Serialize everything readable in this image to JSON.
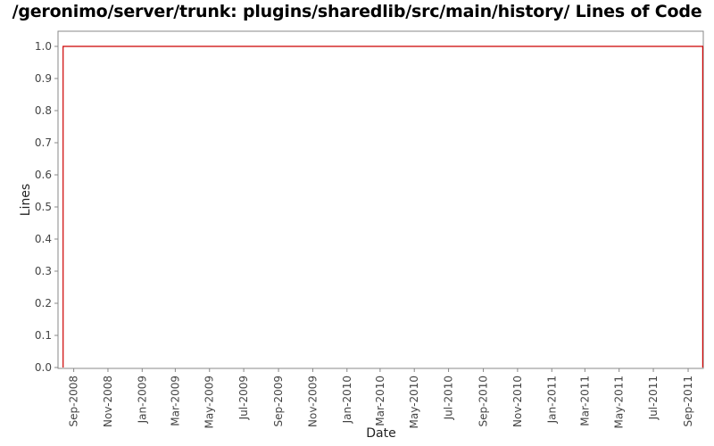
{
  "chart_data": {
    "type": "line",
    "title": "/geronimo/server/trunk: plugins/sharedlib/src/main/history/ Lines of Code",
    "xlabel": "Date",
    "ylabel": "Lines",
    "ylim": [
      0.0,
      1.05
    ],
    "xlim": [
      "2008-08-04",
      "2011-09-28"
    ],
    "y_ticks": [
      0.0,
      0.1,
      0.2,
      0.3,
      0.4,
      0.5,
      0.6,
      0.7,
      0.8,
      0.9,
      1.0
    ],
    "y_tick_labels": [
      "0.0",
      "0.1",
      "0.2",
      "0.3",
      "0.4",
      "0.5",
      "0.6",
      "0.7",
      "0.8",
      "0.9",
      "1.0"
    ],
    "x_ticks": [
      "2008-09-01",
      "2008-11-01",
      "2009-01-01",
      "2009-03-01",
      "2009-05-01",
      "2009-07-01",
      "2009-09-01",
      "2009-11-01",
      "2010-01-01",
      "2010-03-01",
      "2010-05-01",
      "2010-07-01",
      "2010-09-01",
      "2010-11-01",
      "2011-01-01",
      "2011-03-01",
      "2011-05-01",
      "2011-07-01",
      "2011-09-01"
    ],
    "x_tick_labels": [
      "Sep-2008",
      "Nov-2008",
      "Jan-2009",
      "Mar-2009",
      "May-2009",
      "Jul-2009",
      "Sep-2009",
      "Nov-2009",
      "Jan-2010",
      "Mar-2010",
      "May-2010",
      "Jul-2010",
      "Sep-2010",
      "Nov-2010",
      "Jan-2011",
      "Mar-2011",
      "May-2011",
      "Jul-2011",
      "Sep-2011"
    ],
    "grid": false,
    "series": [
      {
        "color": "#cc0000",
        "x": [
          "2008-08-13",
          "2008-08-13",
          "2011-09-27",
          "2011-09-27"
        ],
        "y": [
          0,
          1,
          1,
          0
        ]
      }
    ]
  }
}
